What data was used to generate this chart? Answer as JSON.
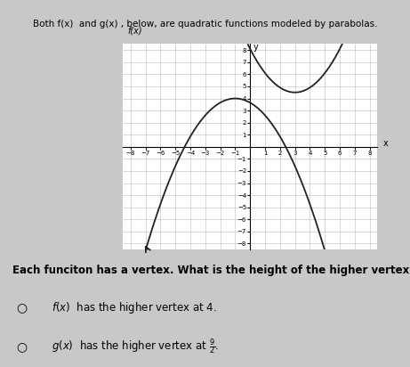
{
  "title_line1": "Both f(x)  and g(x) , below, are quadratic functions modeled by parabolas.",
  "graph_label_fx": "f(x)",
  "graph_label_y": "y",
  "graph_label_x": "x",
  "xlim": [
    -8.5,
    8.5
  ],
  "ylim": [
    -8.5,
    8.5
  ],
  "xticks": [
    -8,
    -7,
    -6,
    -5,
    -4,
    -3,
    -2,
    -1,
    1,
    2,
    3,
    4,
    5,
    6,
    7,
    8
  ],
  "yticks": [
    -8,
    -7,
    -6,
    -5,
    -4,
    -3,
    -2,
    -1,
    1,
    2,
    3,
    4,
    5,
    6,
    7,
    8
  ],
  "fx_vertex_x": -1,
  "fx_vertex_y": 4,
  "fx_a": -0.35,
  "gx_vertex_x": 3,
  "gx_vertex_y": 4.5,
  "gx_a": 0.4,
  "curve_color": "#222222",
  "grid_color": "#bbbbbb",
  "background_color": "#ffffff",
  "bg_outer": "#c8c8c8",
  "question_text": "Each funciton has a vertex. What is the height of the higher vertex?",
  "font_size_title": 7.5,
  "font_size_question": 8.5,
  "font_size_option": 8.5,
  "font_size_tick": 5,
  "font_size_axis_label": 7
}
